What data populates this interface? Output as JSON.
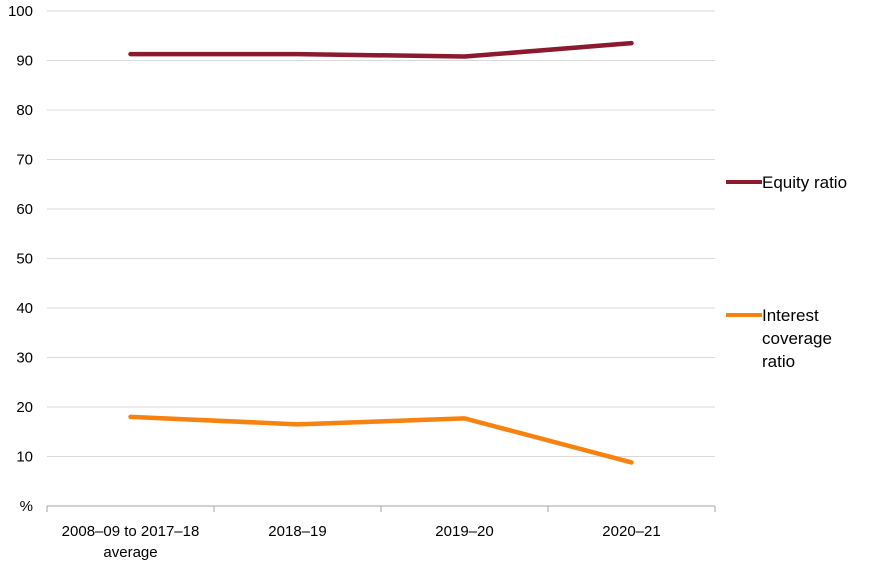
{
  "chart_data": {
    "type": "line",
    "categories": [
      "2008–09 to 2017–18 average",
      "2018–19",
      "2019–20",
      "2020–21"
    ],
    "category_lines": [
      [
        "2008–09 to 2017–18",
        "average"
      ],
      [
        "2018–19"
      ],
      [
        "2019–20"
      ],
      [
        "2020–21"
      ]
    ],
    "y_unit_label": "%",
    "ylim": [
      0,
      100
    ],
    "yticks": [
      0,
      10,
      20,
      30,
      40,
      50,
      60,
      70,
      80,
      90,
      100
    ],
    "ytick_labels": [
      "%",
      "10",
      "20",
      "30",
      "40",
      "50",
      "60",
      "70",
      "80",
      "90",
      "100"
    ],
    "grid": true,
    "legend_position": "right",
    "series": [
      {
        "name": "Equity ratio",
        "color": "#8b1a2e",
        "values": [
          91.3,
          91.3,
          90.8,
          93.5
        ]
      },
      {
        "name": "Interest coverage ratio",
        "color": "#f7820f",
        "values": [
          18.0,
          16.5,
          17.7,
          8.8
        ]
      }
    ]
  }
}
